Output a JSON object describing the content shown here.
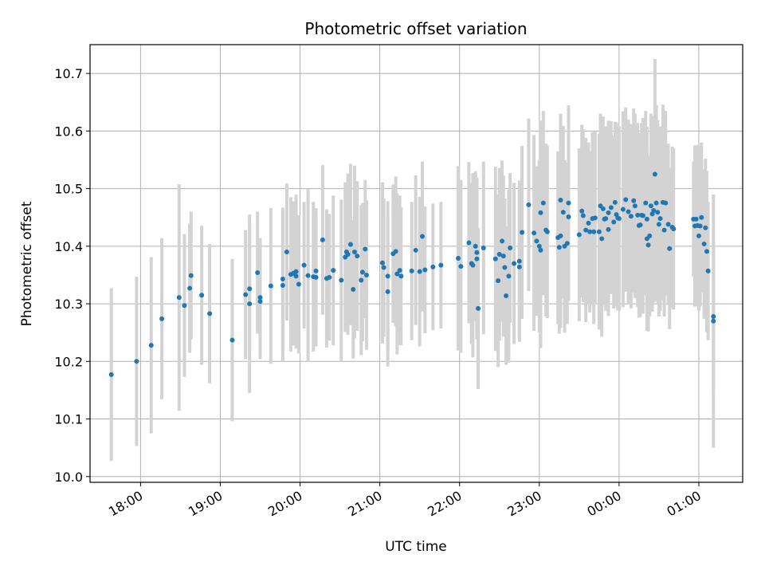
{
  "chart_data": {
    "type": "scatter",
    "title": "Photometric offset variation",
    "xlabel": "UTC time",
    "ylabel": "Photometric offset",
    "xlim": [
      "17:22",
      "01:33"
    ],
    "ylim": [
      9.99,
      10.75
    ],
    "x_ticks": [
      "18:00",
      "19:00",
      "20:00",
      "21:00",
      "22:00",
      "23:00",
      "00:00",
      "01:00"
    ],
    "y_ticks": [
      "10.0",
      "10.1",
      "10.2",
      "10.3",
      "10.4",
      "10.5",
      "10.6",
      "10.7"
    ],
    "grid": true,
    "colors": {
      "point": "#1f77b4",
      "errorbar": "#d3d3d3",
      "grid": "#b0b0b0"
    },
    "series": [
      {
        "points": [
          {
            "x": "17:38",
            "y": 10.177,
            "err": 0.15
          },
          {
            "x": "17:57",
            "y": 10.2,
            "err": 0.147
          },
          {
            "x": "18:08",
            "y": 10.228,
            "err": 0.153
          },
          {
            "x": "18:16",
            "y": 10.274,
            "err": 0.14
          },
          {
            "x": "18:29",
            "y": 10.311,
            "err": 0.197
          },
          {
            "x": "18:33",
            "y": 10.297,
            "err": 0.124
          },
          {
            "x": "18:37",
            "y": 10.327,
            "err": 0.112
          },
          {
            "x": "18:38",
            "y": 10.349,
            "err": 0.111
          },
          {
            "x": "18:46",
            "y": 10.315,
            "err": 0.121
          },
          {
            "x": "18:52",
            "y": 10.283,
            "err": 0.121
          },
          {
            "x": "19:09",
            "y": 10.237,
            "err": 0.141
          },
          {
            "x": "19:19",
            "y": 10.316,
            "err": 0.112
          },
          {
            "x": "19:22",
            "y": 10.326,
            "err": 0.11
          },
          {
            "x": "19:22",
            "y": 10.3,
            "err": 0.155
          },
          {
            "x": "19:28",
            "y": 10.354,
            "err": 0.106
          },
          {
            "x": "19:30",
            "y": 10.311,
            "err": 0.103
          },
          {
            "x": "19:30",
            "y": 10.304,
            "err": 0.1
          },
          {
            "x": "19:38",
            "y": 10.331,
            "err": 0.135
          },
          {
            "x": "19:47",
            "y": 10.332,
            "err": 0.132
          },
          {
            "x": "19:47",
            "y": 10.343,
            "err": 0.124
          },
          {
            "x": "19:50",
            "y": 10.39,
            "err": 0.119
          },
          {
            "x": "19:53",
            "y": 10.351,
            "err": 0.134
          },
          {
            "x": "19:55",
            "y": 10.353,
            "err": 0.125
          },
          {
            "x": "19:57",
            "y": 10.356,
            "err": 0.134
          },
          {
            "x": "19:57",
            "y": 10.348,
            "err": 0.124
          },
          {
            "x": "19:59",
            "y": 10.334,
            "err": 0.12
          },
          {
            "x": "20:03",
            "y": 10.367,
            "err": 0.11
          },
          {
            "x": "20:06",
            "y": 10.349,
            "err": 0.15
          },
          {
            "x": "20:10",
            "y": 10.347,
            "err": 0.13
          },
          {
            "x": "20:12",
            "y": 10.357,
            "err": 0.1
          },
          {
            "x": "20:12",
            "y": 10.346,
            "err": 0.12
          },
          {
            "x": "20:17",
            "y": 10.411,
            "err": 0.13
          },
          {
            "x": "20:20",
            "y": 10.344,
            "err": 0.12
          },
          {
            "x": "20:22",
            "y": 10.346,
            "err": 0.11
          },
          {
            "x": "20:25",
            "y": 10.358,
            "err": 0.13
          },
          {
            "x": "20:31",
            "y": 10.341,
            "err": 0.14
          },
          {
            "x": "20:34",
            "y": 10.381,
            "err": 0.13
          },
          {
            "x": "20:35",
            "y": 10.39,
            "err": 0.12
          },
          {
            "x": "20:36",
            "y": 10.386,
            "err": 0.14
          },
          {
            "x": "20:38",
            "y": 10.403,
            "err": 0.14
          },
          {
            "x": "20:40",
            "y": 10.325,
            "err": 0.12
          },
          {
            "x": "20:41",
            "y": 10.39,
            "err": 0.15
          },
          {
            "x": "20:43",
            "y": 10.383,
            "err": 0.13
          },
          {
            "x": "20:46",
            "y": 10.341,
            "err": 0.13
          },
          {
            "x": "20:47",
            "y": 10.355,
            "err": 0.12
          },
          {
            "x": "20:49",
            "y": 10.395,
            "err": 0.12
          },
          {
            "x": "20:50",
            "y": 10.35,
            "err": 0.13
          },
          {
            "x": "21:02",
            "y": 10.371,
            "err": 0.14
          },
          {
            "x": "21:03",
            "y": 10.363,
            "err": 0.12
          },
          {
            "x": "21:06",
            "y": 10.348,
            "err": 0.13
          },
          {
            "x": "21:06",
            "y": 10.321,
            "err": 0.13
          },
          {
            "x": "21:10",
            "y": 10.387,
            "err": 0.12
          },
          {
            "x": "21:12",
            "y": 10.391,
            "err": 0.13
          },
          {
            "x": "21:13",
            "y": 10.352,
            "err": 0.14
          },
          {
            "x": "21:15",
            "y": 10.358,
            "err": 0.13
          },
          {
            "x": "21:16",
            "y": 10.348,
            "err": 0.12
          },
          {
            "x": "21:24",
            "y": 10.357,
            "err": 0.12
          },
          {
            "x": "21:27",
            "y": 10.393,
            "err": 0.13
          },
          {
            "x": "21:30",
            "y": 10.356,
            "err": 0.13
          },
          {
            "x": "21:32",
            "y": 10.417,
            "err": 0.13
          },
          {
            "x": "21:34",
            "y": 10.359,
            "err": 0.11
          },
          {
            "x": "21:40",
            "y": 10.364,
            "err": 0.11
          },
          {
            "x": "21:46",
            "y": 10.367,
            "err": 0.11
          },
          {
            "x": "21:59",
            "y": 10.379,
            "err": 0.16
          },
          {
            "x": "22:01",
            "y": 10.365,
            "err": 0.15
          },
          {
            "x": "22:07",
            "y": 10.406,
            "err": 0.14
          },
          {
            "x": "22:09",
            "y": 10.37,
            "err": 0.14
          },
          {
            "x": "22:10",
            "y": 10.367,
            "err": 0.16
          },
          {
            "x": "22:12",
            "y": 10.4,
            "err": 0.13
          },
          {
            "x": "22:13",
            "y": 10.389,
            "err": 0.13
          },
          {
            "x": "22:13",
            "y": 10.378,
            "err": 0.14
          },
          {
            "x": "22:14",
            "y": 10.292,
            "err": 0.14
          },
          {
            "x": "22:18",
            "y": 10.397,
            "err": 0.15
          },
          {
            "x": "22:27",
            "y": 10.378,
            "err": 0.16
          },
          {
            "x": "22:29",
            "y": 10.34,
            "err": 0.15
          },
          {
            "x": "22:30",
            "y": 10.386,
            "err": 0.15
          },
          {
            "x": "22:32",
            "y": 10.409,
            "err": 0.14
          },
          {
            "x": "22:33",
            "y": 10.383,
            "err": 0.14
          },
          {
            "x": "22:34",
            "y": 10.363,
            "err": 0.12
          },
          {
            "x": "22:35",
            "y": 10.314,
            "err": 0.12
          },
          {
            "x": "22:37",
            "y": 10.348,
            "err": 0.15
          },
          {
            "x": "22:38",
            "y": 10.397,
            "err": 0.13
          },
          {
            "x": "22:41",
            "y": 10.37,
            "err": 0.14
          },
          {
            "x": "22:45",
            "y": 10.374,
            "err": 0.14
          },
          {
            "x": "22:45",
            "y": 10.364,
            "err": 0.13
          },
          {
            "x": "22:47",
            "y": 10.424,
            "err": 0.15
          },
          {
            "x": "22:52",
            "y": 10.472,
            "err": 0.15
          },
          {
            "x": "22:56",
            "y": 10.423,
            "err": 0.17
          },
          {
            "x": "22:58",
            "y": 10.409,
            "err": 0.13
          },
          {
            "x": "23:00",
            "y": 10.4,
            "err": 0.15
          },
          {
            "x": "23:01",
            "y": 10.393,
            "err": 0.17
          },
          {
            "x": "23:01",
            "y": 10.458,
            "err": 0.16
          },
          {
            "x": "23:03",
            "y": 10.475,
            "err": 0.16
          },
          {
            "x": "23:05",
            "y": 10.428,
            "err": 0.15
          },
          {
            "x": "23:06",
            "y": 10.425,
            "err": 0.15
          },
          {
            "x": "23:14",
            "y": 10.415,
            "err": 0.15
          },
          {
            "x": "23:15",
            "y": 10.398,
            "err": 0.15
          },
          {
            "x": "23:16",
            "y": 10.418,
            "err": 0.16
          },
          {
            "x": "23:16",
            "y": 10.48,
            "err": 0.15
          },
          {
            "x": "23:18",
            "y": 10.459,
            "err": 0.15
          },
          {
            "x": "23:19",
            "y": 10.4,
            "err": 0.15
          },
          {
            "x": "23:21",
            "y": 10.405,
            "err": 0.14
          },
          {
            "x": "23:22",
            "y": 10.475,
            "err": 0.17
          },
          {
            "x": "23:22",
            "y": 10.451,
            "err": 0.14
          },
          {
            "x": "23:30",
            "y": 10.42,
            "err": 0.15
          },
          {
            "x": "23:32",
            "y": 10.461,
            "err": 0.15
          },
          {
            "x": "23:33",
            "y": 10.453,
            "err": 0.15
          },
          {
            "x": "23:35",
            "y": 10.428,
            "err": 0.16
          },
          {
            "x": "23:37",
            "y": 10.44,
            "err": 0.14
          },
          {
            "x": "23:38",
            "y": 10.425,
            "err": 0.14
          },
          {
            "x": "23:40",
            "y": 10.448,
            "err": 0.15
          },
          {
            "x": "23:41",
            "y": 10.425,
            "err": 0.16
          },
          {
            "x": "23:42",
            "y": 10.449,
            "err": 0.15
          },
          {
            "x": "23:45",
            "y": 10.425,
            "err": 0.17
          },
          {
            "x": "23:46",
            "y": 10.47,
            "err": 0.16
          },
          {
            "x": "23:47",
            "y": 10.413,
            "err": 0.17
          },
          {
            "x": "23:48",
            "y": 10.465,
            "err": 0.16
          },
          {
            "x": "23:49",
            "y": 10.447,
            "err": 0.15
          },
          {
            "x": "23:50",
            "y": 10.448,
            "err": 0.16
          },
          {
            "x": "23:52",
            "y": 10.458,
            "err": 0.16
          },
          {
            "x": "23:52",
            "y": 10.429,
            "err": 0.15
          },
          {
            "x": "23:54",
            "y": 10.467,
            "err": 0.15
          },
          {
            "x": "23:56",
            "y": 10.442,
            "err": 0.15
          },
          {
            "x": "23:57",
            "y": 10.476,
            "err": 0.14
          },
          {
            "x": "23:58",
            "y": 10.455,
            "err": 0.16
          },
          {
            "x": "23:59",
            "y": 10.449,
            "err": 0.16
          },
          {
            "x": "00:00",
            "y": 10.448,
            "err": 0.16
          },
          {
            "x": "00:03",
            "y": 10.464,
            "err": 0.17
          },
          {
            "x": "00:05",
            "y": 10.481,
            "err": 0.16
          },
          {
            "x": "00:07",
            "y": 10.46,
            "err": 0.16
          },
          {
            "x": "00:09",
            "y": 10.452,
            "err": 0.16
          },
          {
            "x": "00:11",
            "y": 10.479,
            "err": 0.16
          },
          {
            "x": "00:12",
            "y": 10.47,
            "err": 0.16
          },
          {
            "x": "00:14",
            "y": 10.454,
            "err": 0.16
          },
          {
            "x": "00:15",
            "y": 10.436,
            "err": 0.16
          },
          {
            "x": "00:16",
            "y": 10.437,
            "err": 0.16
          },
          {
            "x": "00:17",
            "y": 10.454,
            "err": 0.16
          },
          {
            "x": "00:18",
            "y": 10.453,
            "err": 0.17
          },
          {
            "x": "00:20",
            "y": 10.475,
            "err": 0.16
          },
          {
            "x": "00:21",
            "y": 10.413,
            "err": 0.16
          },
          {
            "x": "00:21",
            "y": 10.447,
            "err": 0.16
          },
          {
            "x": "00:22",
            "y": 10.402,
            "err": 0.15
          },
          {
            "x": "00:23",
            "y": 10.418,
            "err": 0.14
          },
          {
            "x": "00:24",
            "y": 10.47,
            "err": 0.16
          },
          {
            "x": "00:25",
            "y": 10.456,
            "err": 0.17
          },
          {
            "x": "00:26",
            "y": 10.462,
            "err": 0.16
          },
          {
            "x": "00:27",
            "y": 10.525,
            "err": 0.2
          },
          {
            "x": "00:28",
            "y": 10.475,
            "err": 0.17
          },
          {
            "x": "00:29",
            "y": 10.459,
            "err": 0.16
          },
          {
            "x": "00:30",
            "y": 10.438,
            "err": 0.16
          },
          {
            "x": "00:31",
            "y": 10.448,
            "err": 0.16
          },
          {
            "x": "00:33",
            "y": 10.476,
            "err": 0.17
          },
          {
            "x": "00:34",
            "y": 10.428,
            "err": 0.15
          },
          {
            "x": "00:35",
            "y": 10.475,
            "err": 0.16
          },
          {
            "x": "00:37",
            "y": 10.438,
            "err": 0.14
          },
          {
            "x": "00:38",
            "y": 10.396,
            "err": 0.14
          },
          {
            "x": "00:40",
            "y": 10.433,
            "err": 0.14
          },
          {
            "x": "00:41",
            "y": 10.43,
            "err": 0.14
          },
          {
            "x": "00:56",
            "y": 10.447,
            "err": 0.1
          },
          {
            "x": "00:57",
            "y": 10.435,
            "err": 0.14
          },
          {
            "x": "00:58",
            "y": 10.447,
            "err": 0.12
          },
          {
            "x": "00:59",
            "y": 10.436,
            "err": 0.14
          },
          {
            "x": "01:00",
            "y": 10.418,
            "err": 0.13
          },
          {
            "x": "01:01",
            "y": 10.435,
            "err": 0.14
          },
          {
            "x": "01:02",
            "y": 10.45,
            "err": 0.13
          },
          {
            "x": "01:04",
            "y": 10.404,
            "err": 0.13
          },
          {
            "x": "01:05",
            "y": 10.432,
            "err": 0.12
          },
          {
            "x": "01:06",
            "y": 10.391,
            "err": 0.14
          },
          {
            "x": "01:07",
            "y": 10.357,
            "err": 0.12
          },
          {
            "x": "01:11",
            "y": 10.278,
            "err": 0.13
          },
          {
            "x": "01:11",
            "y": 10.27,
            "err": 0.22
          }
        ]
      }
    ]
  }
}
